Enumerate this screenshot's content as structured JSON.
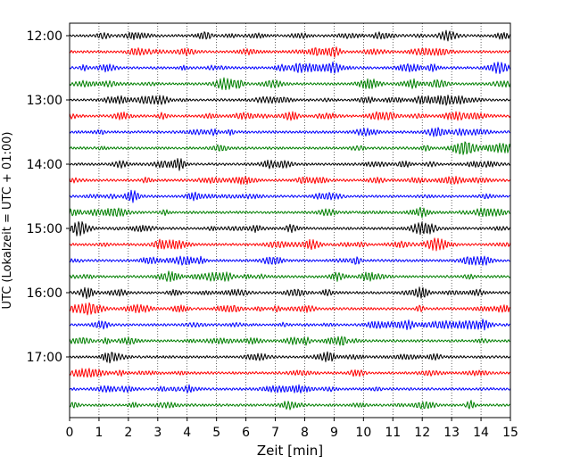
{
  "chart_data": {
    "type": "line",
    "title": "",
    "xlabel": "Zeit  [min]",
    "ylabel": "UTC (Lokalzeit = UTC + 01:00)",
    "xlim": [
      0,
      15
    ],
    "x_ticks": [
      "0",
      "1",
      "2",
      "3",
      "4",
      "5",
      "6",
      "7",
      "8",
      "9",
      "10",
      "11",
      "12",
      "13",
      "14",
      "15"
    ],
    "y_tick_labels": [
      "12:00",
      "13:00",
      "14:00",
      "15:00",
      "16:00",
      "17:00"
    ],
    "grid": "vertical dotted",
    "trace_colors": [
      "#000000",
      "#ff0000",
      "#0000ff",
      "#007f00"
    ],
    "traces": [
      {
        "start": "12:00",
        "color": "#000000"
      },
      {
        "start": "12:15",
        "color": "#ff0000"
      },
      {
        "start": "12:30",
        "color": "#0000ff"
      },
      {
        "start": "12:45",
        "color": "#007f00"
      },
      {
        "start": "13:00",
        "color": "#000000"
      },
      {
        "start": "13:15",
        "color": "#ff0000"
      },
      {
        "start": "13:30",
        "color": "#0000ff"
      },
      {
        "start": "13:45",
        "color": "#007f00"
      },
      {
        "start": "14:00",
        "color": "#000000"
      },
      {
        "start": "14:15",
        "color": "#ff0000"
      },
      {
        "start": "14:30",
        "color": "#0000ff"
      },
      {
        "start": "14:45",
        "color": "#007f00"
      },
      {
        "start": "15:00",
        "color": "#000000"
      },
      {
        "start": "15:15",
        "color": "#ff0000"
      },
      {
        "start": "15:30",
        "color": "#0000ff"
      },
      {
        "start": "15:45",
        "color": "#007f00"
      },
      {
        "start": "16:00",
        "color": "#000000"
      },
      {
        "start": "16:15",
        "color": "#ff0000"
      },
      {
        "start": "16:30",
        "color": "#0000ff"
      },
      {
        "start": "16:45",
        "color": "#007f00"
      },
      {
        "start": "17:00",
        "color": "#000000"
      },
      {
        "start": "17:15",
        "color": "#ff0000"
      },
      {
        "start": "17:30",
        "color": "#0000ff"
      },
      {
        "start": "17:45",
        "color": "#007f00"
      }
    ]
  }
}
